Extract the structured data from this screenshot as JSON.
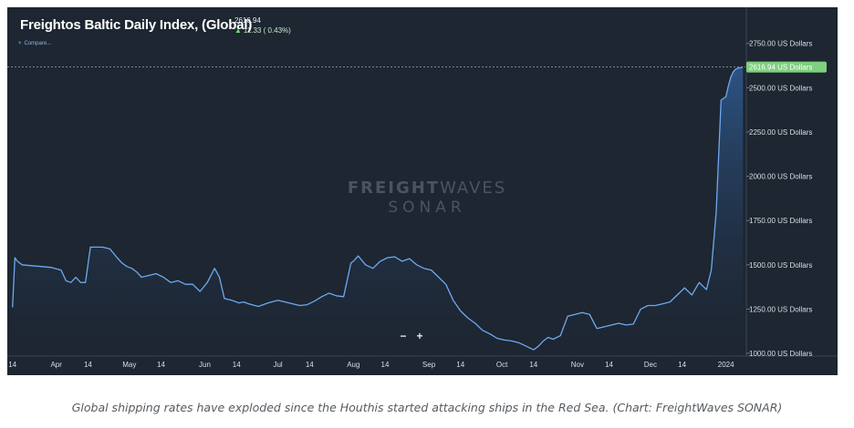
{
  "header": {
    "title": "Freightos Baltic Daily Index, (Global)",
    "value": "2616.94",
    "change": "11.33 ( 0.43%)",
    "compare_label": "Compare..."
  },
  "watermark": {
    "brand_bold": "FREIGHT",
    "brand_light": "WAVES",
    "product": "SONAR"
  },
  "zoom": {
    "minus": "−",
    "plus": "+"
  },
  "caption": "Global shipping rates have exploded since the Houthis started attacking ships in the Red Sea. (Chart: FreightWaves SONAR)",
  "colors": {
    "background": "#1d2631",
    "line": "#6fa8ef",
    "area_top": "#2f5b93",
    "price_tag": "#7ed07e"
  },
  "chart_data": {
    "type": "area",
    "title": "Freightos Baltic Daily Index, (Global)",
    "ylim": [
      1000,
      2750
    ],
    "y_ticks": [
      1000,
      1250,
      1500,
      1750,
      2000,
      2250,
      2500,
      2750
    ],
    "y_tick_labels": [
      "1000.00 US Dollars",
      "1250.00 US Dollars",
      "1500.00 US Dollars",
      "1750.00 US Dollars",
      "2000.00 US Dollars",
      "2250.00 US Dollars",
      "2500.00 US Dollars",
      "2750.00 US Dollars"
    ],
    "x_ticks": [
      {
        "date": "2023-03-14",
        "label": "14"
      },
      {
        "date": "2023-04-01",
        "label": "Apr"
      },
      {
        "date": "2023-04-14",
        "label": "14"
      },
      {
        "date": "2023-05-01",
        "label": "May"
      },
      {
        "date": "2023-05-14",
        "label": "14"
      },
      {
        "date": "2023-06-01",
        "label": "Jun"
      },
      {
        "date": "2023-06-14",
        "label": "14"
      },
      {
        "date": "2023-07-01",
        "label": "Jul"
      },
      {
        "date": "2023-07-14",
        "label": "14"
      },
      {
        "date": "2023-08-01",
        "label": "Aug"
      },
      {
        "date": "2023-08-14",
        "label": "14"
      },
      {
        "date": "2023-09-01",
        "label": "Sep"
      },
      {
        "date": "2023-09-14",
        "label": "14"
      },
      {
        "date": "2023-10-01",
        "label": "Oct"
      },
      {
        "date": "2023-10-14",
        "label": "14"
      },
      {
        "date": "2023-11-01",
        "label": "Nov"
      },
      {
        "date": "2023-11-14",
        "label": "14"
      },
      {
        "date": "2023-12-01",
        "label": "Dec"
      },
      {
        "date": "2023-12-14",
        "label": "14"
      },
      {
        "date": "2024-01-01",
        "label": "2024"
      }
    ],
    "last_value_label": "2616.94 US Dollars",
    "last_value": 2616.94,
    "grid": false,
    "series": [
      {
        "x": [
          "2023-03-14",
          "2023-03-15",
          "2023-03-16",
          "2023-03-18",
          "2023-03-22",
          "2023-03-26",
          "2023-03-30",
          "2023-04-03",
          "2023-04-05",
          "2023-04-07",
          "2023-04-09",
          "2023-04-11",
          "2023-04-13",
          "2023-04-15",
          "2023-04-17",
          "2023-04-20",
          "2023-04-23",
          "2023-04-26",
          "2023-04-28",
          "2023-04-30",
          "2023-05-02",
          "2023-05-04",
          "2023-05-06",
          "2023-05-09",
          "2023-05-12",
          "2023-05-15",
          "2023-05-18",
          "2023-05-21",
          "2023-05-24",
          "2023-05-27",
          "2023-05-30",
          "2023-06-02",
          "2023-06-05",
          "2023-06-07",
          "2023-06-09",
          "2023-06-12",
          "2023-06-15",
          "2023-06-17",
          "2023-06-19",
          "2023-06-23",
          "2023-06-27",
          "2023-07-01",
          "2023-07-04",
          "2023-07-07",
          "2023-07-10",
          "2023-07-13",
          "2023-07-16",
          "2023-07-19",
          "2023-07-22",
          "2023-07-25",
          "2023-07-28",
          "2023-07-31",
          "2023-08-01",
          "2023-08-03",
          "2023-08-06",
          "2023-08-09",
          "2023-08-12",
          "2023-08-15",
          "2023-08-18",
          "2023-08-21",
          "2023-08-24",
          "2023-08-27",
          "2023-08-30",
          "2023-09-02",
          "2023-09-05",
          "2023-09-08",
          "2023-09-11",
          "2023-09-14",
          "2023-09-17",
          "2023-09-20",
          "2023-09-23",
          "2023-09-26",
          "2023-09-29",
          "2023-10-02",
          "2023-10-05",
          "2023-10-08",
          "2023-10-11",
          "2023-10-14",
          "2023-10-16",
          "2023-10-18",
          "2023-10-20",
          "2023-10-22",
          "2023-10-25",
          "2023-10-28",
          "2023-10-31",
          "2023-11-03",
          "2023-11-06",
          "2023-11-09",
          "2023-11-12",
          "2023-11-15",
          "2023-11-18",
          "2023-11-21",
          "2023-11-24",
          "2023-11-27",
          "2023-11-30",
          "2023-12-03",
          "2023-12-06",
          "2023-12-09",
          "2023-12-12",
          "2023-12-15",
          "2023-12-18",
          "2023-12-21",
          "2023-12-24",
          "2023-12-26",
          "2023-12-28",
          "2023-12-30",
          "2024-01-01",
          "2024-01-02",
          "2024-01-03",
          "2024-01-04",
          "2024-01-05",
          "2024-01-06",
          "2024-01-08"
        ],
        "values": [
          1260,
          1540,
          1520,
          1500,
          1495,
          1490,
          1485,
          1470,
          1410,
          1400,
          1430,
          1400,
          1400,
          1600,
          1600,
          1600,
          1590,
          1540,
          1510,
          1490,
          1480,
          1460,
          1430,
          1440,
          1450,
          1430,
          1400,
          1410,
          1390,
          1390,
          1350,
          1400,
          1480,
          1430,
          1310,
          1300,
          1285,
          1290,
          1280,
          1265,
          1285,
          1300,
          1290,
          1280,
          1270,
          1275,
          1295,
          1320,
          1340,
          1325,
          1320,
          1510,
          1520,
          1550,
          1500,
          1480,
          1520,
          1540,
          1545,
          1520,
          1535,
          1500,
          1480,
          1470,
          1430,
          1390,
          1300,
          1240,
          1200,
          1170,
          1130,
          1110,
          1085,
          1075,
          1070,
          1060,
          1040,
          1020,
          1040,
          1070,
          1090,
          1080,
          1100,
          1210,
          1220,
          1230,
          1220,
          1140,
          1150,
          1160,
          1170,
          1160,
          1165,
          1250,
          1270,
          1270,
          1280,
          1290,
          1330,
          1370,
          1330,
          1400,
          1360,
          1470,
          1800,
          2430,
          2450,
          2510,
          2560,
          2590,
          2605,
          2610,
          2616.94
        ]
      }
    ]
  }
}
